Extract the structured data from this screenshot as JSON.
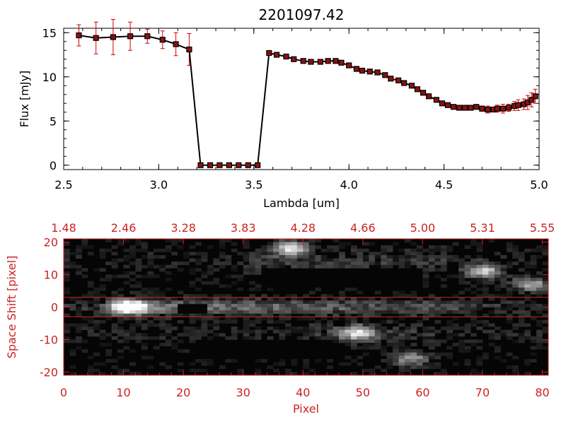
{
  "colors": {
    "axis_top": "#000000",
    "axis_bottom": "#cc2222",
    "error_bar": "#d40000",
    "marker_fill": "#8b1010",
    "image_band_line": "#cc2222"
  },
  "chart_data": [
    {
      "type": "line",
      "title": "2201097.42",
      "xlabel": "Lambda [um]",
      "ylabel": "Flux [mJy]",
      "xlim": [
        2.5,
        5.0
      ],
      "ylim": [
        -0.5,
        15.5
      ],
      "xticks": [
        "2.5",
        "3.0",
        "3.5",
        "4.0",
        "4.5",
        "5.0"
      ],
      "yticks": [
        "0",
        "5",
        "10",
        "15"
      ],
      "grid": false,
      "series": [
        {
          "x": [
            2.58,
            2.67,
            2.76,
            2.85,
            2.94,
            3.02,
            3.09,
            3.16,
            3.22,
            3.27,
            3.32,
            3.37,
            3.42,
            3.47,
            3.52,
            3.58,
            3.62,
            3.67,
            3.71,
            3.76,
            3.8,
            3.85,
            3.89,
            3.93,
            3.96,
            4.0,
            4.04,
            4.07,
            4.11,
            4.15,
            4.19,
            4.22,
            4.26,
            4.29,
            4.33,
            4.36,
            4.39,
            4.42,
            4.46,
            4.49,
            4.52,
            4.55,
            4.58,
            4.61,
            4.64,
            4.67,
            4.7,
            4.73,
            4.76,
            4.78,
            4.81,
            4.84,
            4.87,
            4.89,
            4.92,
            4.94,
            4.96,
            4.98
          ],
          "y": [
            14.7,
            14.4,
            14.5,
            14.6,
            14.6,
            14.2,
            13.7,
            13.1,
            0.0,
            0.0,
            0.0,
            0.0,
            0.0,
            0.0,
            0.0,
            12.7,
            12.5,
            12.3,
            12.0,
            11.8,
            11.7,
            11.7,
            11.8,
            11.8,
            11.6,
            11.3,
            10.9,
            10.7,
            10.6,
            10.5,
            10.2,
            9.8,
            9.6,
            9.3,
            9.0,
            8.6,
            8.2,
            7.8,
            7.4,
            7.0,
            6.8,
            6.6,
            6.5,
            6.5,
            6.5,
            6.6,
            6.4,
            6.3,
            6.3,
            6.4,
            6.4,
            6.5,
            6.7,
            6.8,
            6.9,
            7.1,
            7.4,
            7.8
          ],
          "yerr": [
            1.2,
            1.8,
            2.0,
            1.6,
            0.8,
            1.0,
            1.3,
            1.8,
            0,
            0,
            0,
            0,
            0,
            0,
            0,
            0,
            0,
            0,
            0,
            0,
            0,
            0,
            0,
            0,
            0,
            0,
            0,
            0,
            0,
            0,
            0,
            0,
            0,
            0,
            0,
            0,
            0,
            0,
            0,
            0,
            0,
            0,
            0,
            0,
            0,
            0,
            0.3,
            0.4,
            0,
            0.4,
            0.5,
            0.4,
            0.5,
            0.6,
            0.6,
            0.8,
            0.8,
            0.8
          ]
        }
      ]
    },
    {
      "type": "heatmap",
      "xlabel": "Pixel",
      "ylabel": "Space Shift [pixel]",
      "xlim": [
        0,
        81
      ],
      "ylim": [
        -21,
        21
      ],
      "xticks": [
        "0",
        "10",
        "20",
        "30",
        "40",
        "50",
        "60",
        "70",
        "80"
      ],
      "yticks": [
        "-20",
        "-10",
        "0",
        "10",
        "20"
      ],
      "top_tick_labels": [
        "1.48",
        "2.46",
        "3.28",
        "3.83",
        "4.28",
        "4.66",
        "5.00",
        "5.31",
        "5.55"
      ],
      "band_lines_y": [
        3,
        -3
      ],
      "sources": [
        {
          "x": 11,
          "y": 0,
          "peak": 255
        },
        {
          "x": 38,
          "y": 18,
          "peak": 215
        },
        {
          "x": 49,
          "y": -8,
          "peak": 200
        },
        {
          "x": 70,
          "y": 11,
          "peak": 200
        },
        {
          "x": 78,
          "y": 7,
          "peak": 170
        },
        {
          "x": 58,
          "y": -16,
          "peak": 150
        }
      ]
    }
  ]
}
